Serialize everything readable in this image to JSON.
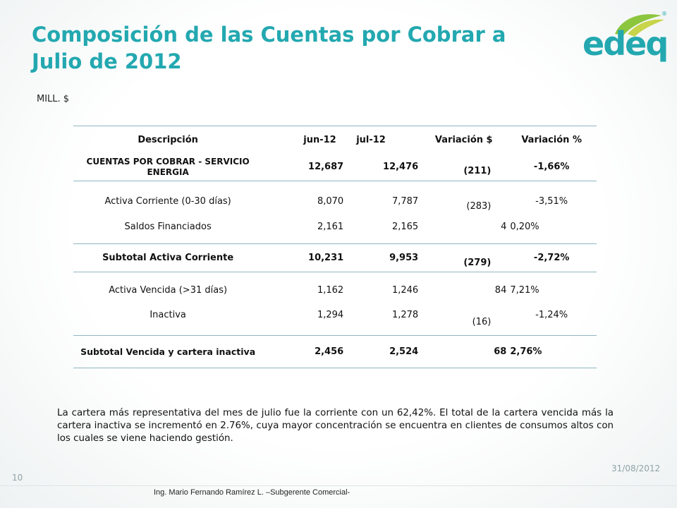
{
  "slide": {
    "title_line1": "Composición de las Cuentas por Cobrar a",
    "title_line2": "Julio de 2012",
    "units": "MILL. $",
    "logo_text": "edeq",
    "logo_registered": "®",
    "brand_color": "#23a8b0"
  },
  "table": {
    "headers": [
      "Descripción",
      "jun-12",
      "jul-12",
      "Variación $",
      "Variación %"
    ],
    "rows": [
      {
        "desc": "CUENTAS POR COBRAR - SERVICIO ENERGIA",
        "jun": "12,687",
        "jul": "12,476",
        "var": "(211)",
        "varp": "-1,66%"
      },
      {
        "desc": "Activa Corriente (0-30 días)",
        "jun": "8,070",
        "jul": "7,787",
        "var": "(283)",
        "varp": "-3,51%"
      },
      {
        "desc": "Saldos Financiados",
        "jun": "2,161",
        "jul": "2,165",
        "var": "4",
        "varp": "0,20%"
      },
      {
        "desc": "Subtotal Activa Corriente",
        "jun": "10,231",
        "jul": "9,953",
        "var": "(279)",
        "varp": "-2,72%"
      },
      {
        "desc": "Activa Vencida (>31 días)",
        "jun": "1,162",
        "jul": "1,246",
        "var": "84",
        "varp": "7,21%"
      },
      {
        "desc": "Inactiva",
        "jun": "1,294",
        "jul": "1,278",
        "var": "(16)",
        "varp": "-1,24%"
      },
      {
        "desc": "Subtotal Vencida y cartera inactiva",
        "jun": "2,456",
        "jul": "2,524",
        "var": "68",
        "varp": "2,76%"
      }
    ]
  },
  "paragraph": "La cartera más representativa del mes de julio fue la corriente con un 62,42%. El total de la cartera vencida más la cartera inactiva se incrementó en 2.76%, cuya mayor concentración se encuentra en clientes de consumos altos con los cuales se viene haciendo gestión.",
  "footer": {
    "date": "31/08/2012",
    "page_number": "10",
    "author": "Ing. Mario Fernando Ramírez L. –Subgerente Comercial-"
  }
}
